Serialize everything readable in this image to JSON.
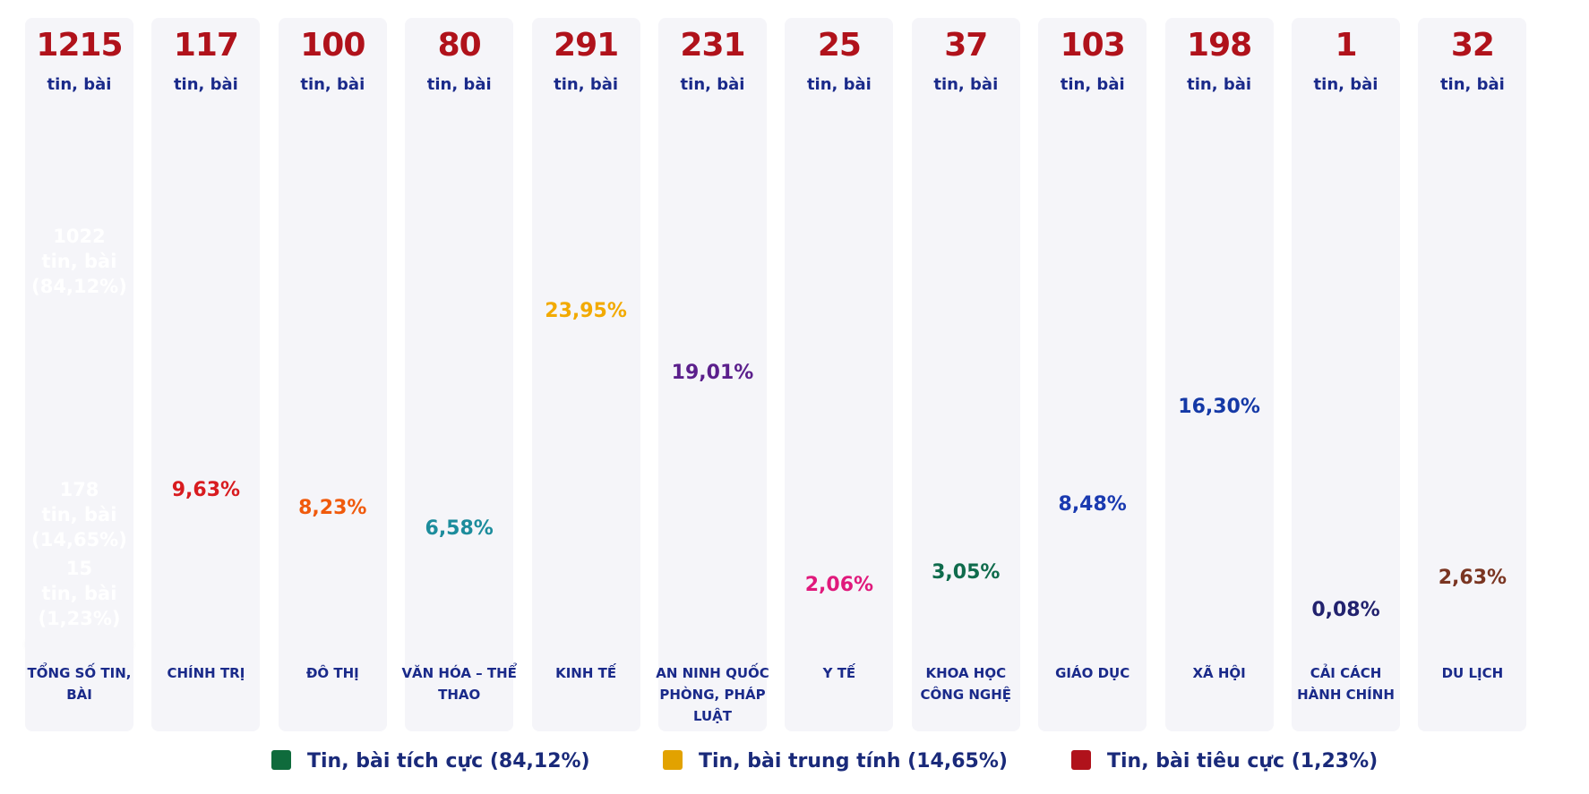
{
  "chart_data": {
    "type": "cylinder-bar",
    "categories": [
      "TỔNG SỐ TIN, BÀI",
      "CHÍNH TRỊ",
      "ĐÔ THỊ",
      "VĂN HÓA – THỂ THAO",
      "KINH TẾ",
      "AN NINH QUỐC PHÒNG, PHÁP LUẬT",
      "Y TẾ",
      "KHOA HỌC CÔNG NGHỆ",
      "GIÁO DỤC",
      "XÃ HỘI",
      "CẢI CÁCH HÀNH CHÍNH",
      "DU LỊCH"
    ],
    "values": [
      1215,
      117,
      100,
      80,
      291,
      231,
      25,
      37,
      103,
      198,
      1,
      32
    ],
    "unit": "tin, bài",
    "shares": [
      null,
      9.63,
      8.23,
      6.58,
      23.95,
      19.01,
      2.06,
      3.05,
      8.48,
      16.3,
      0.08,
      2.63
    ],
    "share_labels": [
      null,
      "9,63%",
      "8,23%",
      "6,58%",
      "23,95%",
      "19,01%",
      "2,06%",
      "3,05%",
      "8,48%",
      "16,30%",
      "0,08%",
      "2,63%"
    ],
    "colors": [
      null,
      "#d81b1f",
      "#f05a0c",
      "#1c8c9c",
      "#f2aa00",
      "#5b1f8c",
      "#e0197c",
      "#0f6b4c",
      "#1a3ab0",
      "#1539a6",
      "#22226e",
      "#7a3522"
    ],
    "stack": [
      {
        "name": "Tin, bài tích cực",
        "value": 1022,
        "share": 84.12,
        "share_label": "(84,12%)",
        "color": "#0f6b3c"
      },
      {
        "name": "Tin, bài trung tính",
        "value": 178,
        "share": 14.65,
        "share_label": "(14,65%)",
        "color": "#e2a200"
      },
      {
        "name": "Tin, bài tiêu cực",
        "value": 15,
        "share": 1.23,
        "share_label": "(1,23%)",
        "color": "#b0121b"
      }
    ]
  }
}
